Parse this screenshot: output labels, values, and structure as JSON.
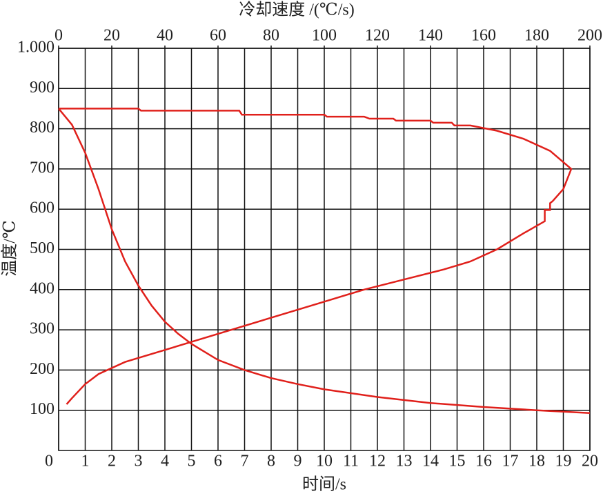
{
  "chart_data": {
    "type": "line",
    "x_label": "时间/s",
    "x2_label": "冷却速度 /(℃/s)",
    "y_label": "温度/℃",
    "xlim": [
      0,
      20
    ],
    "xticks": [
      0,
      1,
      2,
      3,
      4,
      5,
      6,
      7,
      8,
      9,
      10,
      11,
      12,
      13,
      14,
      15,
      16,
      17,
      18,
      19,
      20
    ],
    "x2lim": [
      0,
      200
    ],
    "x2ticks": [
      0,
      20,
      40,
      60,
      80,
      100,
      120,
      140,
      160,
      180,
      200
    ],
    "ylim": [
      0,
      1000
    ],
    "yticks": [
      100,
      200,
      300,
      400,
      500,
      600,
      700,
      800,
      900,
      {
        "value": 1000,
        "label": "1.000"
      }
    ],
    "grid": true,
    "series": [
      {
        "color": "#e0201b",
        "x": [
          0,
          0.5,
          1,
          1.5,
          2,
          2.5,
          3,
          3.5,
          4,
          4.5,
          5,
          6,
          7,
          8,
          9,
          10,
          12,
          14,
          16,
          18,
          20
        ],
        "values": [
          850,
          810,
          740,
          650,
          550,
          470,
          410,
          360,
          320,
          290,
          265,
          225,
          200,
          180,
          165,
          152,
          133,
          118,
          108,
          100,
          93
        ]
      },
      {
        "color": "#e0201b",
        "axis": "x2",
        "x": [
          0,
          30,
          31,
          68,
          69,
          100,
          101,
          115,
          117,
          126,
          127,
          140,
          141,
          148,
          149,
          155,
          165,
          175,
          185,
          193,
          190,
          186,
          185,
          185,
          183,
          183,
          175,
          165,
          155,
          145,
          130,
          115,
          100,
          80,
          60,
          40,
          25,
          15,
          10,
          5,
          3
        ],
        "values": [
          850,
          850,
          845,
          845,
          835,
          835,
          830,
          830,
          825,
          825,
          820,
          820,
          815,
          815,
          808,
          808,
          795,
          775,
          745,
          700,
          650,
          620,
          615,
          598,
          598,
          570,
          540,
          500,
          470,
          450,
          425,
          400,
          370,
          330,
          290,
          250,
          220,
          190,
          165,
          130,
          115
        ]
      }
    ]
  }
}
